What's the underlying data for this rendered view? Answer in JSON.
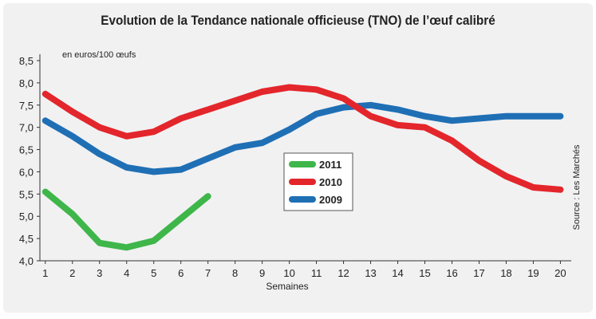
{
  "chart_data": {
    "type": "line",
    "title": "Evolution de la Tendance nationale officieuse (TNO) de l’œuf calibré",
    "ylabel": "en euros/100 œufs",
    "xlabel": "Semaines",
    "source": "Source : Les Marchés",
    "x": [
      1,
      2,
      3,
      4,
      5,
      6,
      7,
      8,
      9,
      10,
      11,
      12,
      13,
      14,
      15,
      16,
      17,
      18,
      19,
      20
    ],
    "x_ticks": [
      "1",
      "2",
      "3",
      "4",
      "5",
      "6",
      "7",
      "8",
      "9",
      "10",
      "11",
      "12",
      "13",
      "14",
      "15",
      "16",
      "17",
      "18",
      "19",
      "20"
    ],
    "ylim": [
      4.0,
      8.5
    ],
    "y_ticks": [
      "4,0",
      "4,5",
      "5,0",
      "5,5",
      "6,0",
      "6,5",
      "7,0",
      "7,5",
      "8,0",
      "8,5"
    ],
    "y_tick_values": [
      4.0,
      4.5,
      5.0,
      5.5,
      6.0,
      6.5,
      7.0,
      7.5,
      8.0,
      8.5
    ],
    "grid": false,
    "legend_position": "center",
    "series": [
      {
        "name": "2011",
        "color": "#3fb64a",
        "x": [
          1,
          2,
          3,
          4,
          5,
          6,
          7
        ],
        "values": [
          5.55,
          5.05,
          4.4,
          4.3,
          4.45,
          4.95,
          5.45
        ]
      },
      {
        "name": "2010",
        "color": "#e3262b",
        "x": [
          1,
          2,
          3,
          4,
          5,
          6,
          7,
          8,
          9,
          10,
          11,
          12,
          13,
          14,
          15,
          16,
          17,
          18,
          19,
          20
        ],
        "values": [
          7.75,
          7.35,
          7.0,
          6.8,
          6.9,
          7.2,
          7.4,
          7.6,
          7.8,
          7.9,
          7.85,
          7.65,
          7.25,
          7.05,
          7.0,
          6.7,
          6.25,
          5.9,
          5.65,
          5.6
        ]
      },
      {
        "name": "2009",
        "color": "#1f6fb5",
        "x": [
          1,
          2,
          3,
          4,
          5,
          6,
          7,
          8,
          9,
          10,
          11,
          12,
          13,
          14,
          15,
          16,
          17,
          18,
          19,
          20
        ],
        "values": [
          7.15,
          6.8,
          6.4,
          6.1,
          6.0,
          6.05,
          6.3,
          6.55,
          6.65,
          6.95,
          7.3,
          7.45,
          7.5,
          7.4,
          7.25,
          7.15,
          7.2,
          7.25,
          7.25,
          7.25
        ]
      }
    ]
  }
}
